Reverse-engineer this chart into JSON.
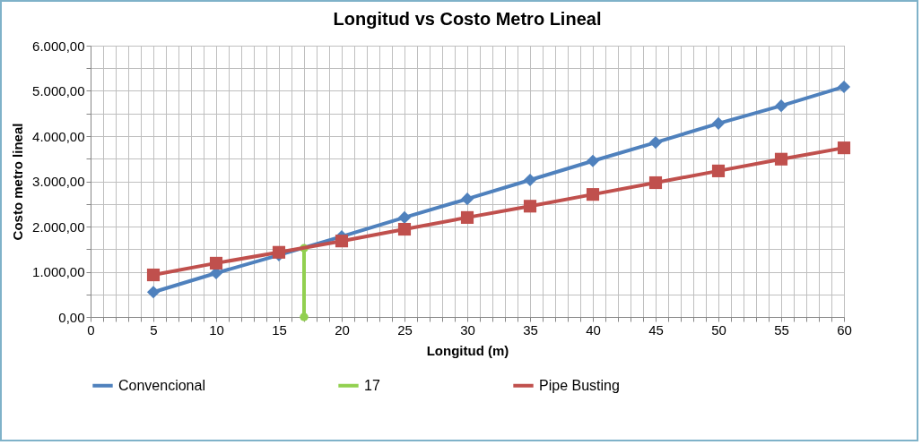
{
  "chart_data": {
    "type": "line",
    "title": "Longitud vs Costo Metro Lineal",
    "xlabel": "Longitud (m)",
    "ylabel": "Costo metro lineal",
    "xlim": [
      0,
      60
    ],
    "xticks": [
      0,
      {
        "value": 1,
        "label": null
      },
      {
        "value": 2,
        "label": null
      },
      {
        "value": 3,
        "label": null
      },
      {
        "value": 4,
        "label": null
      },
      5,
      {
        "value": 6,
        "label": null
      },
      {
        "value": 7,
        "label": null
      },
      {
        "value": 8,
        "label": null
      },
      {
        "value": 9,
        "label": null
      },
      10,
      {
        "value": 11,
        "label": null
      },
      {
        "value": 12,
        "label": null
      },
      {
        "value": 13,
        "label": null
      },
      {
        "value": 14,
        "label": null
      },
      15,
      {
        "value": 16,
        "label": null
      },
      {
        "value": 17,
        "label": null
      },
      {
        "value": 18,
        "label": null
      },
      {
        "value": 19,
        "label": null
      },
      20,
      {
        "value": 21,
        "label": null
      },
      {
        "value": 22,
        "label": null
      },
      {
        "value": 23,
        "label": null
      },
      {
        "value": 24,
        "label": null
      },
      25,
      {
        "value": 26,
        "label": null
      },
      {
        "value": 27,
        "label": null
      },
      {
        "value": 28,
        "label": null
      },
      {
        "value": 29,
        "label": null
      },
      30,
      {
        "value": 31,
        "label": null
      },
      {
        "value": 32,
        "label": null
      },
      {
        "value": 33,
        "label": null
      },
      {
        "value": 34,
        "label": null
      },
      35,
      {
        "value": 36,
        "label": null
      },
      {
        "value": 37,
        "label": null
      },
      {
        "value": 38,
        "label": null
      },
      {
        "value": 39,
        "label": null
      },
      40,
      {
        "value": 41,
        "label": null
      },
      {
        "value": 42,
        "label": null
      },
      {
        "value": 43,
        "label": null
      },
      {
        "value": 44,
        "label": null
      },
      45,
      {
        "value": 46,
        "label": null
      },
      {
        "value": 47,
        "label": null
      },
      {
        "value": 48,
        "label": null
      },
      {
        "value": 49,
        "label": null
      },
      50,
      {
        "value": 51,
        "label": null
      },
      {
        "value": 52,
        "label": null
      },
      {
        "value": 53,
        "label": null
      },
      {
        "value": 54,
        "label": null
      },
      55,
      {
        "value": 56,
        "label": null
      },
      {
        "value": 57,
        "label": null
      },
      {
        "value": 58,
        "label": null
      },
      {
        "value": 59,
        "label": null
      },
      60
    ],
    "ylim": [
      0,
      6000
    ],
    "yticks": [
      {
        "value": 0,
        "label": "0,00"
      },
      {
        "value": 500,
        "label": null
      },
      {
        "value": 1000,
        "label": "1.000,00"
      },
      {
        "value": 1500,
        "label": null
      },
      {
        "value": 2000,
        "label": "2.000,00"
      },
      {
        "value": 2500,
        "label": null
      },
      {
        "value": 3000,
        "label": "3.000,00"
      },
      {
        "value": 3500,
        "label": null
      },
      {
        "value": 4000,
        "label": "4.000,00"
      },
      {
        "value": 4500,
        "label": null
      },
      {
        "value": 5000,
        "label": "5.000,00"
      },
      {
        "value": 5500,
        "label": null
      },
      {
        "value": 6000,
        "label": "6.000,00"
      }
    ],
    "grid": true,
    "legend": "bottom",
    "line_style": "solid",
    "x": [
      5,
      10,
      15,
      20,
      25,
      30,
      35,
      40,
      45,
      50,
      55,
      60
    ],
    "series": [
      {
        "name": "Convencional",
        "color": "#4f81bd",
        "marker": "diamond",
        "values": [
          550,
          970,
          1370,
          1780,
          2200,
          2610,
          3030,
          3450,
          3860,
          4280,
          4670,
          5090
        ]
      },
      {
        "name": "17",
        "color": "#92d050",
        "marker": "circle",
        "x": [
          17,
          17
        ],
        "values": [
          0,
          1520
        ]
      },
      {
        "name": "Pipe Busting",
        "color": "#c0504d",
        "marker": "square",
        "values": [
          930,
          1190,
          1430,
          1680,
          1940,
          2200,
          2450,
          2710,
          2970,
          3230,
          3490,
          3740
        ]
      }
    ]
  }
}
